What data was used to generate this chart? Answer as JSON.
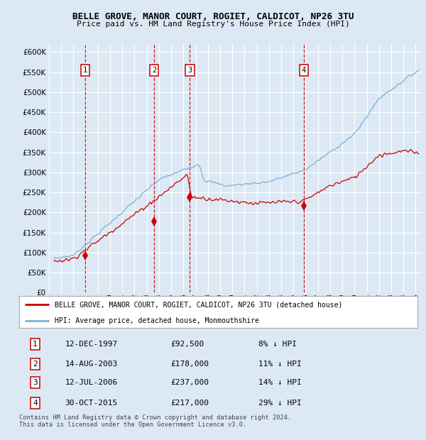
{
  "title": "BELLE GROVE, MANOR COURT, ROGIET, CALDICOT, NP26 3TU",
  "subtitle": "Price paid vs. HM Land Registry's House Price Index (HPI)",
  "background_color": "#dce9f5",
  "plot_bg_color": "#dce9f5",
  "ylim": [
    0,
    620000
  ],
  "yticks": [
    0,
    50000,
    100000,
    150000,
    200000,
    250000,
    300000,
    350000,
    400000,
    450000,
    500000,
    550000,
    600000
  ],
  "xlim_start": 1995.3,
  "xlim_end": 2025.5,
  "xtick_years": [
    1995,
    1996,
    1997,
    1998,
    1999,
    2000,
    2001,
    2002,
    2003,
    2004,
    2005,
    2006,
    2007,
    2008,
    2009,
    2010,
    2011,
    2012,
    2013,
    2014,
    2015,
    2016,
    2017,
    2018,
    2019,
    2020,
    2021,
    2022,
    2023,
    2024,
    2025
  ],
  "sale_dates": [
    1997.95,
    2003.62,
    2006.53,
    2015.83
  ],
  "sale_prices": [
    92500,
    178000,
    237000,
    217000
  ],
  "sale_labels": [
    "1",
    "2",
    "3",
    "4"
  ],
  "legend_label_red": "BELLE GROVE, MANOR COURT, ROGIET, CALDICOT, NP26 3TU (detached house)",
  "legend_label_blue": "HPI: Average price, detached house, Monmouthshire",
  "table_data": [
    [
      "1",
      "12-DEC-1997",
      "£92,500",
      "8% ↓ HPI"
    ],
    [
      "2",
      "14-AUG-2003",
      "£178,000",
      "11% ↓ HPI"
    ],
    [
      "3",
      "12-JUL-2006",
      "£237,000",
      "14% ↓ HPI"
    ],
    [
      "4",
      "30-OCT-2015",
      "£217,000",
      "29% ↓ HPI"
    ]
  ],
  "footnote": "Contains HM Land Registry data © Crown copyright and database right 2024.\nThis data is licensed under the Open Government Licence v3.0.",
  "red_color": "#cc0000",
  "blue_color": "#7aafd4",
  "dashed_color": "#cc0000",
  "grid_color": "#c8d8e8"
}
